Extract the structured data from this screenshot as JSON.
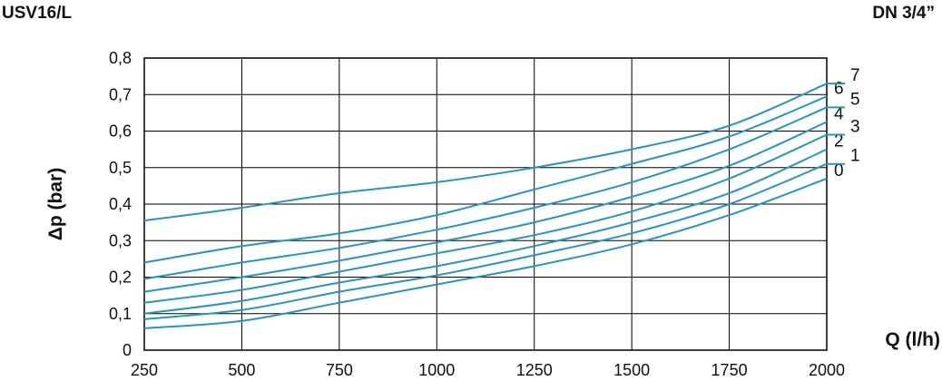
{
  "header": {
    "model": "USV16/L",
    "size": "DN 3/4”"
  },
  "chart_data": {
    "type": "line",
    "xlabel": "Q (l/h)",
    "ylabel": "Δp (bar)",
    "xlim": [
      250,
      2000
    ],
    "ylim": [
      0,
      0.8
    ],
    "x_ticks": [
      250,
      500,
      750,
      1000,
      1250,
      1500,
      1750,
      2000
    ],
    "x_tick_labels": [
      "250",
      "500",
      "750",
      "1000",
      "1250",
      "1500",
      "1750",
      "2000"
    ],
    "y_ticks": [
      0,
      0.1,
      0.2,
      0.3,
      0.4,
      0.5,
      0.6,
      0.7,
      0.8
    ],
    "y_tick_labels": [
      "0",
      "0,1",
      "0,2",
      "0,3",
      "0,4",
      "0,5",
      "0,6",
      "0,7",
      "0,8"
    ],
    "grid": true,
    "line_color": "#2596be",
    "x": [
      250,
      500,
      750,
      1000,
      1250,
      1500,
      1750,
      2000
    ],
    "series": [
      {
        "name": "0",
        "values": [
          0.06,
          0.08,
          0.13,
          0.18,
          0.23,
          0.29,
          0.37,
          0.47
        ]
      },
      {
        "name": "1",
        "values": [
          0.085,
          0.11,
          0.16,
          0.205,
          0.26,
          0.32,
          0.4,
          0.51
        ]
      },
      {
        "name": "2",
        "values": [
          0.1,
          0.135,
          0.185,
          0.23,
          0.285,
          0.35,
          0.43,
          0.55
        ]
      },
      {
        "name": "3",
        "values": [
          0.13,
          0.165,
          0.215,
          0.265,
          0.315,
          0.38,
          0.47,
          0.59
        ]
      },
      {
        "name": "4",
        "values": [
          0.16,
          0.2,
          0.245,
          0.295,
          0.35,
          0.42,
          0.505,
          0.625
        ]
      },
      {
        "name": "5",
        "values": [
          0.195,
          0.24,
          0.28,
          0.33,
          0.39,
          0.46,
          0.55,
          0.665
        ]
      },
      {
        "name": "6",
        "values": [
          0.24,
          0.285,
          0.32,
          0.37,
          0.44,
          0.51,
          0.585,
          0.695
        ]
      },
      {
        "name": "7",
        "values": [
          0.355,
          0.39,
          0.43,
          0.46,
          0.5,
          0.55,
          0.615,
          0.73
        ]
      }
    ]
  }
}
